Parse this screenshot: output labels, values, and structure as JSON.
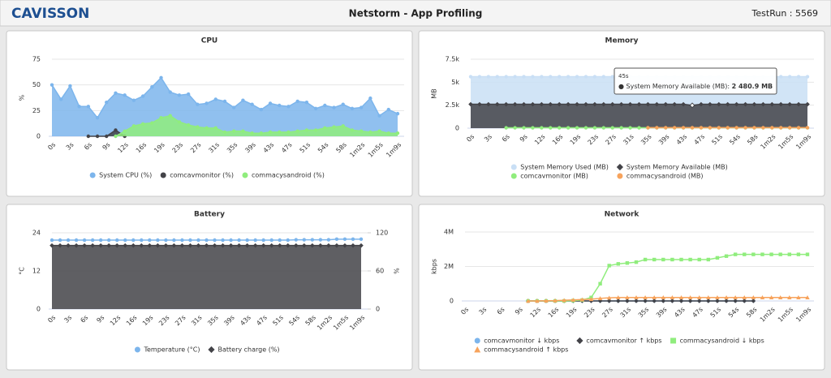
{
  "header": {
    "logo": "CAVISSON",
    "title": "Netstorm - App Profiling",
    "testrun": "TestRun : 5569"
  },
  "tooltip": {
    "header": "45s",
    "series": "System Memory Available (MB):",
    "value": "2 480.9 MB"
  },
  "chart_data": [
    {
      "type": "line",
      "title": "CPU",
      "ylabel": "%",
      "ylim": [
        0,
        75
      ],
      "yticks": [
        0,
        25,
        50,
        75
      ],
      "grid": true,
      "categories": [
        "0s",
        null,
        "3s",
        null,
        "6s",
        null,
        "9s",
        null,
        "12s",
        null,
        "16s",
        null,
        "19s",
        null,
        "23s",
        null,
        "27s",
        null,
        "31s",
        null,
        "35s",
        null,
        "39s",
        null,
        "43s",
        null,
        "47s",
        null,
        "51s",
        null,
        "54s",
        null,
        "58s",
        null,
        "1m2s",
        null,
        "1m5s",
        null,
        "1m9s"
      ],
      "series": [
        {
          "name": "System CPU (%)",
          "color": "#7cb5ec",
          "style": "area",
          "marker": "circle",
          "values": [
            50,
            36,
            49,
            29,
            29,
            18,
            33,
            42,
            40,
            35,
            39,
            48,
            57,
            43,
            40,
            41,
            31,
            32,
            36,
            34,
            28,
            35,
            31,
            26,
            32,
            30,
            29,
            34,
            33,
            27,
            30,
            28,
            31,
            27,
            28,
            37,
            20,
            26,
            22
          ]
        },
        {
          "name": "comcavmonitor (%)",
          "color": "#434348",
          "style": "area",
          "marker": "circle",
          "values": [
            null,
            null,
            null,
            null,
            0,
            0,
            0,
            6,
            0,
            null,
            null,
            null,
            null,
            null,
            null,
            null,
            null,
            null,
            null,
            null,
            null,
            null,
            null,
            null,
            null,
            null,
            null,
            null,
            null,
            null,
            null,
            null,
            null,
            null,
            null,
            null,
            null,
            null,
            null
          ]
        },
        {
          "name": "commacysandroid (%)",
          "color": "#90ed7d",
          "style": "area",
          "marker": "circle",
          "values": [
            null,
            null,
            null,
            null,
            null,
            null,
            null,
            0,
            5,
            10,
            12,
            13,
            18,
            20,
            14,
            11,
            9,
            8,
            8,
            4,
            5,
            5,
            3,
            3,
            4,
            4,
            4,
            5,
            6,
            6,
            8,
            9,
            10,
            6,
            5,
            4,
            5,
            3,
            3
          ]
        }
      ]
    },
    {
      "type": "line",
      "title": "Memory",
      "ylabel": "MB",
      "ylim": [
        0,
        7500
      ],
      "yticks": [
        0,
        {
          "value": 2500,
          "label": "2.5k"
        },
        {
          "value": 5000,
          "label": "5k"
        },
        {
          "value": 7500,
          "label": "7.5k"
        }
      ],
      "grid": true,
      "categories": [
        "0s",
        null,
        "3s",
        null,
        "6s",
        null,
        "9s",
        null,
        "12s",
        null,
        "16s",
        null,
        "19s",
        null,
        "23s",
        null,
        "27s",
        null,
        "31s",
        null,
        "35s",
        null,
        "39s",
        null,
        "43s",
        null,
        "47s",
        null,
        "51s",
        null,
        "54s",
        null,
        "58s",
        null,
        "1m2s",
        null,
        "1m5s",
        null,
        "1m9s"
      ],
      "series": [
        {
          "name": "System Memory Used (MB)",
          "color": "#c9dff5",
          "style": "area",
          "marker": "circle",
          "values": [
            5600,
            5600,
            5600,
            5600,
            5600,
            5600,
            5600,
            5600,
            5600,
            5600,
            5600,
            5600,
            5600,
            5600,
            5600,
            5600,
            5600,
            5600,
            5600,
            5600,
            5600,
            5600,
            5600,
            5600,
            5600,
            5600,
            5600,
            5600,
            5600,
            5600,
            5600,
            5600,
            5600,
            5600,
            5600,
            5600,
            5600,
            5600,
            5600
          ]
        },
        {
          "name": "System Memory Available (MB)",
          "color": "#434348",
          "style": "area",
          "marker": "diamond",
          "values": [
            2600,
            2600,
            2600,
            2600,
            2600,
            2600,
            2600,
            2600,
            2600,
            2600,
            2600,
            2600,
            2600,
            2600,
            2600,
            2600,
            2600,
            2600,
            2600,
            2600,
            2600,
            2600,
            2600,
            2600,
            2600,
            2480.9,
            2600,
            2600,
            2600,
            2600,
            2600,
            2600,
            2600,
            2600,
            2600,
            2600,
            2600,
            2600,
            2600
          ]
        },
        {
          "name": "comcavmonitor (MB)",
          "color": "#90ed7d",
          "style": "line",
          "marker": "circle",
          "values": [
            null,
            null,
            null,
            null,
            40,
            40,
            40,
            40,
            40,
            40,
            40,
            40,
            40,
            40,
            40,
            40,
            40,
            40,
            40,
            40,
            40,
            40,
            40,
            40,
            40,
            40,
            40,
            40,
            40,
            40,
            40,
            40,
            40,
            40,
            40,
            40,
            40,
            40,
            40
          ]
        },
        {
          "name": "commacysandroid (MB)",
          "color": "#f7a35c",
          "style": "line",
          "marker": "circle",
          "values": [
            null,
            null,
            null,
            null,
            null,
            null,
            null,
            null,
            null,
            null,
            null,
            null,
            null,
            null,
            null,
            null,
            null,
            null,
            null,
            null,
            50,
            50,
            50,
            50,
            50,
            50,
            50,
            50,
            50,
            50,
            50,
            50,
            50,
            50,
            50,
            50,
            50,
            50,
            50
          ]
        }
      ]
    },
    {
      "type": "line",
      "title": "Battery",
      "ylabel": "°C",
      "y2label": "%",
      "ylim": [
        0,
        24
      ],
      "yticks": [
        0,
        12,
        24
      ],
      "y2lim": [
        0,
        120
      ],
      "y2ticks": [
        0,
        60,
        120
      ],
      "grid": true,
      "categories": [
        "0s",
        null,
        "3s",
        null,
        "6s",
        null,
        "9s",
        null,
        "12s",
        null,
        "16s",
        null,
        "19s",
        null,
        "23s",
        null,
        "27s",
        null,
        "31s",
        null,
        "35s",
        null,
        "39s",
        null,
        "43s",
        null,
        "47s",
        null,
        "51s",
        null,
        "54s",
        null,
        "58s",
        null,
        "1m2s",
        null,
        "1m5s",
        null,
        "1m9s"
      ],
      "series": [
        {
          "name": "Temperature (°C)",
          "color": "#7cb5ec",
          "style": "line",
          "marker": "circle",
          "values": [
            21.7,
            21.7,
            21.7,
            21.7,
            21.7,
            21.7,
            21.7,
            21.7,
            21.7,
            21.7,
            21.7,
            21.7,
            21.7,
            21.7,
            21.7,
            21.7,
            21.7,
            21.7,
            21.7,
            21.7,
            21.7,
            21.7,
            21.7,
            21.7,
            21.7,
            21.7,
            21.7,
            21.7,
            21.7,
            21.7,
            21.8,
            21.8,
            21.8,
            21.8,
            21.8,
            22,
            22,
            22,
            22
          ]
        },
        {
          "name": "Battery charge (%)",
          "color": "#434348",
          "style": "area",
          "marker": "diamond",
          "axis": "y2",
          "values": [
            100,
            100,
            100,
            100,
            100,
            100,
            100,
            100,
            100,
            100,
            100,
            100,
            100,
            100,
            100,
            100,
            100,
            100,
            100,
            100,
            100,
            100,
            100,
            100,
            100,
            100,
            100,
            100,
            100,
            100,
            100,
            100,
            100,
            100,
            100,
            100,
            100,
            100,
            100
          ]
        }
      ]
    },
    {
      "type": "line",
      "title": "Network",
      "ylabel": "kbps",
      "ylim": [
        0,
        4000000
      ],
      "yticks": [
        0,
        {
          "value": 2000000,
          "label": "2M"
        },
        {
          "value": 4000000,
          "label": "4M"
        }
      ],
      "grid": true,
      "categories": [
        "0s",
        null,
        "3s",
        null,
        "6s",
        null,
        "9s",
        null,
        "12s",
        null,
        "16s",
        null,
        "19s",
        null,
        "23s",
        null,
        "27s",
        null,
        "31s",
        null,
        "35s",
        null,
        "39s",
        null,
        "43s",
        null,
        "47s",
        null,
        "51s",
        null,
        "54s",
        null,
        "58s",
        null,
        "1m2s",
        null,
        "1m5s",
        null,
        "1m9s"
      ],
      "series": [
        {
          "name": "comcavmonitor ↓ kbps",
          "color": "#7cb5ec",
          "style": "line",
          "marker": "circle",
          "values": [
            null,
            null,
            null,
            null,
            null,
            null,
            null,
            0,
            0,
            0,
            0,
            0,
            0,
            0,
            0,
            0,
            0,
            0,
            0,
            0,
            0,
            0,
            0,
            0,
            0,
            0,
            0,
            0,
            0,
            0,
            0,
            0,
            0,
            null,
            null,
            null,
            null,
            null,
            null
          ]
        },
        {
          "name": "comcavmonitor ↑ kbps",
          "color": "#434348",
          "style": "line",
          "marker": "diamond",
          "values": [
            null,
            null,
            null,
            null,
            null,
            null,
            null,
            0,
            0,
            0,
            0,
            0,
            0,
            0,
            0,
            0,
            0,
            0,
            0,
            0,
            0,
            0,
            0,
            0,
            0,
            0,
            0,
            0,
            0,
            0,
            0,
            0,
            0,
            null,
            null,
            null,
            null,
            null,
            null
          ]
        },
        {
          "name": "commacysandroid ↓ kbps",
          "color": "#90ed7d",
          "style": "line",
          "marker": "square",
          "values": [
            null,
            null,
            null,
            null,
            null,
            null,
            null,
            0,
            0,
            0,
            0,
            0,
            20000,
            50000,
            200000,
            1000000,
            2050000,
            2150000,
            2200000,
            2250000,
            2400000,
            2400000,
            2400000,
            2400000,
            2400000,
            2400000,
            2400000,
            2400000,
            2500000,
            2600000,
            2700000,
            2700000,
            2700000,
            2700000,
            2700000,
            2700000,
            2700000,
            2700000,
            2700000
          ]
        },
        {
          "name": "commacysandroid ↑ kbps",
          "color": "#f7a35c",
          "style": "line",
          "marker": "triangle",
          "values": [
            null,
            null,
            null,
            null,
            null,
            null,
            null,
            0,
            0,
            10000,
            20000,
            40000,
            60000,
            80000,
            100000,
            150000,
            180000,
            200000,
            200000,
            200000,
            200000,
            200000,
            200000,
            200000,
            200000,
            200000,
            200000,
            200000,
            200000,
            200000,
            200000,
            200000,
            200000,
            200000,
            200000,
            200000,
            200000,
            200000,
            200000
          ]
        }
      ]
    }
  ]
}
